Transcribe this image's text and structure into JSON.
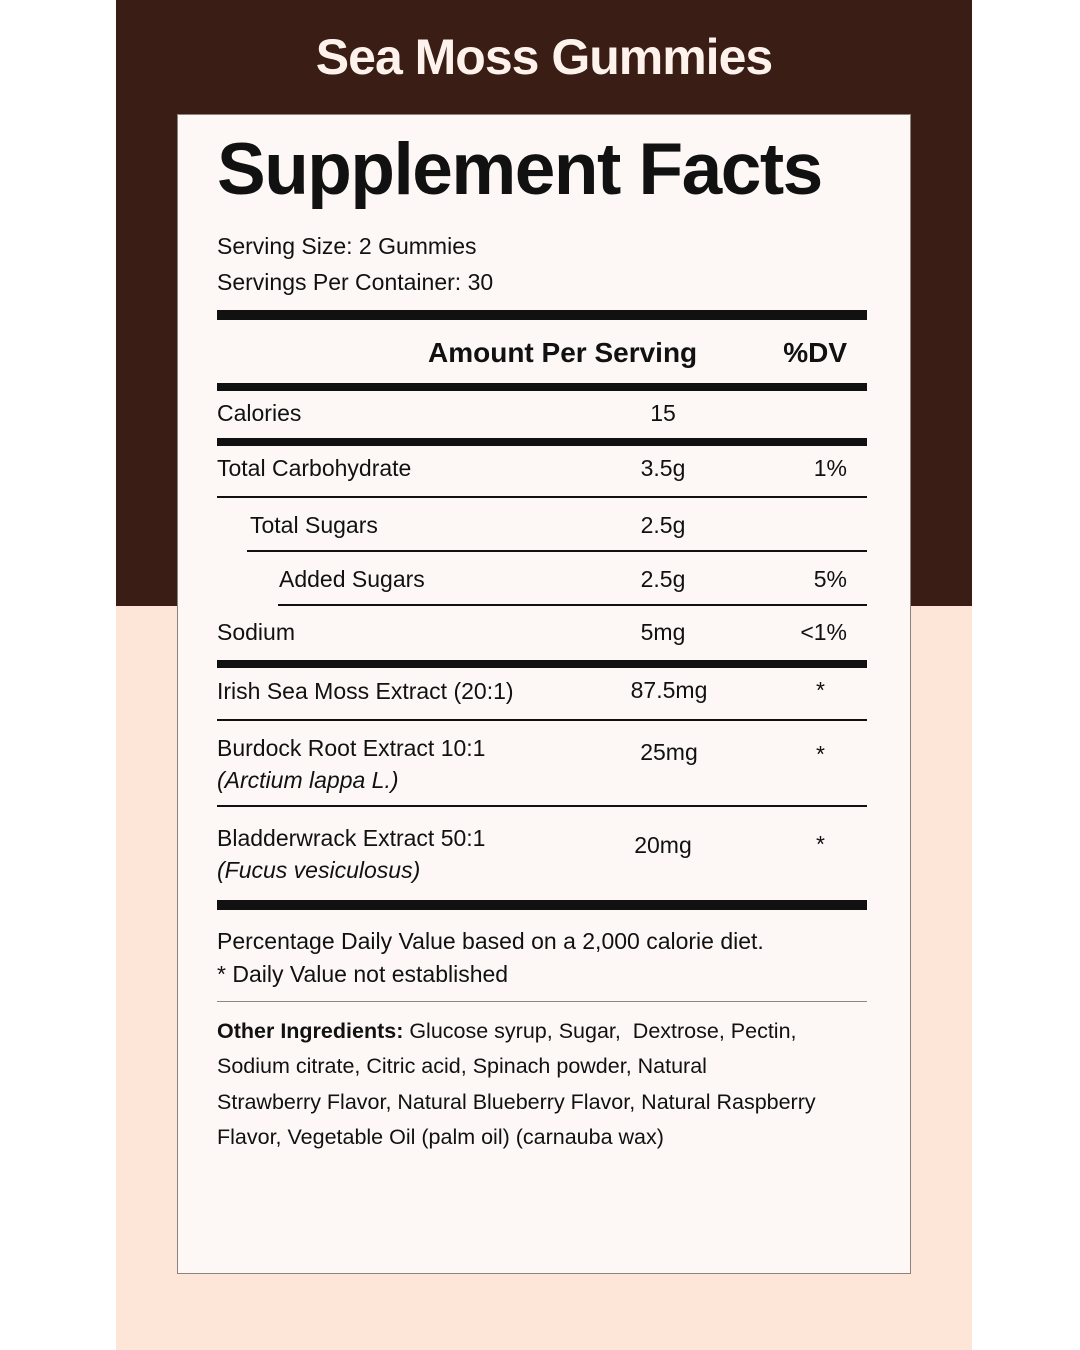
{
  "brand": "Sea Moss Gummies",
  "title": "Supplement Facts",
  "serving_size": "Serving Size: 2 Gummies",
  "servings_per_container": "Servings Per Container: 30",
  "header": {
    "amount": "Amount Per Serving",
    "dv": "%DV"
  },
  "rows": [
    {
      "name": "Calories",
      "amount": "15",
      "dv": ""
    },
    {
      "name": "Total Carbohydrate",
      "amount": "3.5g",
      "dv": "1%"
    },
    {
      "name": "Total Sugars",
      "amount": "2.5g",
      "dv": ""
    },
    {
      "name": "Added Sugars",
      "amount": "2.5g",
      "dv": "5%"
    },
    {
      "name": "Sodium",
      "amount": "5mg",
      "dv": "<1%"
    },
    {
      "name": "Irish Sea Moss Extract (20:1)",
      "amount": "87.5mg",
      "dv": "*"
    },
    {
      "name": "Burdock Root Extract 10:1",
      "latin": "(Arctium lappa L.)",
      "amount": "25mg",
      "dv": "*"
    },
    {
      "name": "Bladderwrack Extract 50:1",
      "latin": "(Fucus vesiculosus)",
      "amount": "20mg",
      "dv": "*"
    }
  ],
  "footnote": {
    "line1": "Percentage Daily Value based on a 2,000 calorie diet.",
    "line2": "* Daily Value not established"
  },
  "other_ingredients": {
    "label": "Other Ingredients:",
    "lines": [
      " Glucose syrup, Sugar,  Dextrose, Pectin,",
      "Sodium citrate, Citric acid, Spinach powder, Natural",
      "Strawberry Flavor, Natural Blueberry Flavor, Natural Raspberry",
      "Flavor, Vegetable Oil (palm oil) (carnauba wax)"
    ]
  },
  "colors": {
    "brown": "#3a1d14",
    "peach": "#fde5d7",
    "card": "#fdf8f6"
  }
}
